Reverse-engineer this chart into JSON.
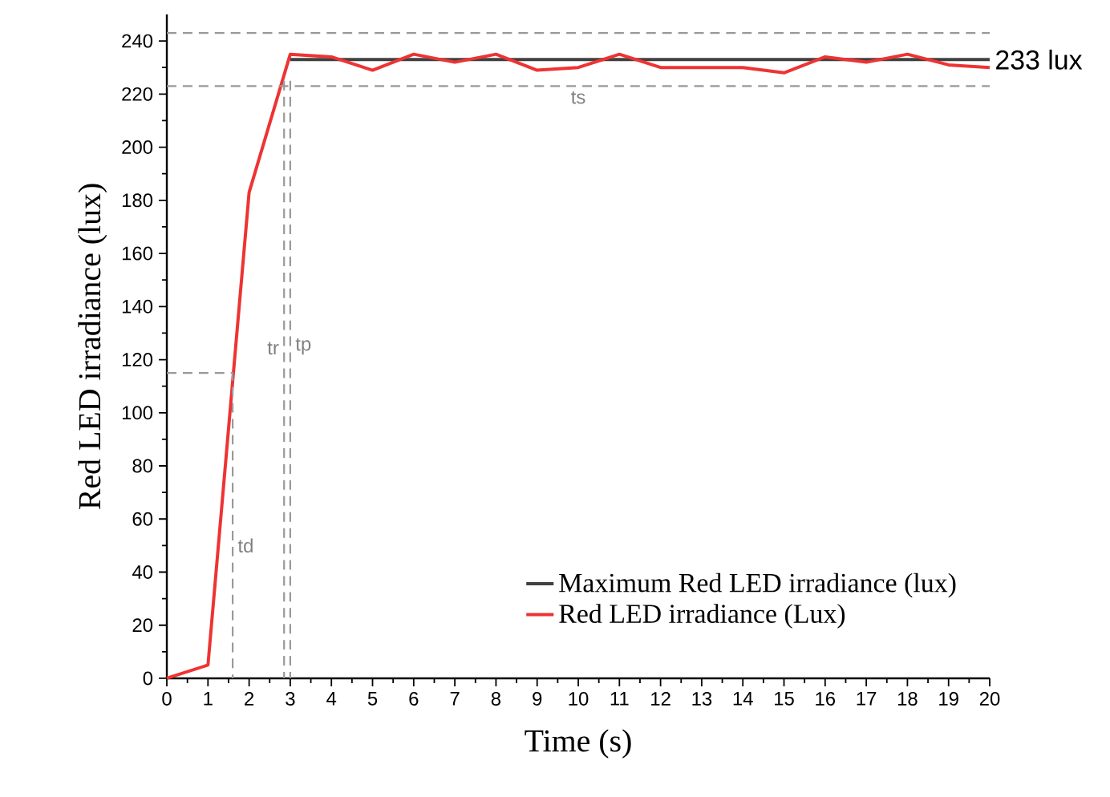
{
  "chart_data": {
    "type": "line",
    "xlabel": "Time (s)",
    "ylabel": "Red LED irradiance (lux)",
    "xlim": [
      0,
      20
    ],
    "ylim": [
      0,
      250
    ],
    "xticks": [
      0,
      1,
      2,
      3,
      4,
      5,
      6,
      7,
      8,
      9,
      10,
      11,
      12,
      13,
      14,
      15,
      16,
      17,
      18,
      19,
      20
    ],
    "yticks": [
      0,
      20,
      40,
      60,
      80,
      100,
      120,
      140,
      160,
      180,
      200,
      220,
      240
    ],
    "grid": false,
    "legend": "bottom right",
    "marker": "none",
    "series": [
      {
        "name": "Maximum Red LED irradiance (lux)",
        "color": "#404040",
        "x": [
          3,
          20
        ],
        "values": [
          233,
          233
        ]
      },
      {
        "name": "Red LED irradiance (Lux)",
        "color": "#ee3333",
        "x": [
          0,
          1,
          2,
          3,
          4,
          5,
          6,
          7,
          8,
          9,
          10,
          11,
          12,
          13,
          14,
          15,
          16,
          17,
          18,
          19,
          20
        ],
        "values": [
          0,
          5,
          183,
          235,
          234,
          229,
          235,
          232,
          235,
          229,
          230,
          235,
          230,
          230,
          230,
          228,
          234,
          232,
          235,
          231,
          230
        ]
      },
      {
        "color": "#999999",
        "line_style": "dashed",
        "x": [
          0,
          1.6,
          1.6
        ],
        "values": [
          115,
          115,
          0
        ]
      },
      {
        "color": "#999999",
        "line_style": "dashed",
        "x": [
          2.85,
          2.85
        ],
        "values": [
          225,
          0
        ]
      },
      {
        "color": "#999999",
        "line_style": "dashed",
        "x": [
          3,
          3
        ],
        "values": [
          225,
          0
        ]
      }
    ],
    "ref_lines": [
      {
        "axis": "y",
        "value": 243,
        "color": "#999999",
        "line_style": "dashed"
      },
      {
        "axis": "y",
        "value": 223,
        "color": "#999999",
        "line_style": "dashed"
      }
    ],
    "annotations": [
      {
        "text": "233 lux",
        "x": 20,
        "y": 233
      },
      {
        "text": "ts",
        "x": 10,
        "y": 223
      },
      {
        "text": "tr",
        "x": 2.85,
        "y": 120
      },
      {
        "text": "tp",
        "x": 3,
        "y": 120
      },
      {
        "text": "td",
        "x": 1.6,
        "y": 50
      }
    ]
  }
}
